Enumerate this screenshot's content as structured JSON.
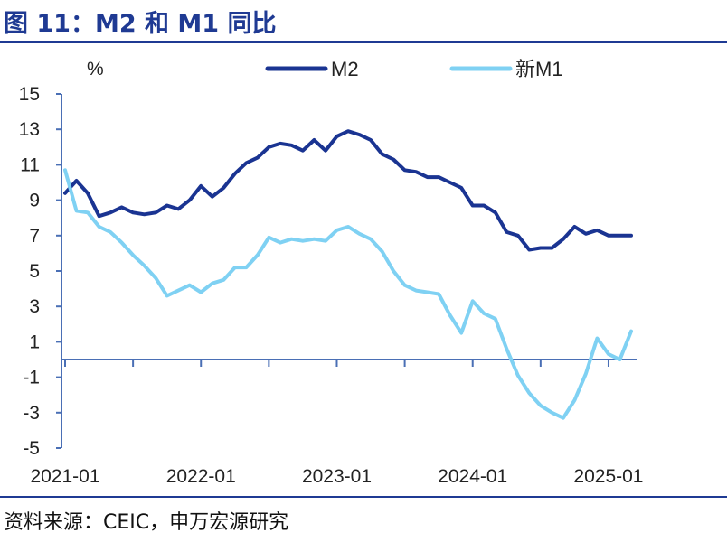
{
  "header": {
    "title": "图 11：M2 和 M1 同比"
  },
  "footer": {
    "source": "资料来源：CEIC，申万宏源研究"
  },
  "colors": {
    "title": "#1f3a93",
    "m2": "#1a3492",
    "m1": "#7fd1f3",
    "axis": "#4a6fb5"
  },
  "chart_data": {
    "type": "line",
    "ylabel": "%",
    "ylim": [
      -5,
      15
    ],
    "yticks": [
      15,
      13,
      11,
      9,
      7,
      5,
      3,
      1,
      -1,
      -3,
      -5
    ],
    "xtick_labels": [
      "2021-01",
      "2022-01",
      "2023-01",
      "2024-01",
      "2025-01"
    ],
    "x_start": "2021-01",
    "x_end": "2025-05",
    "legend_position": "top",
    "grid": false,
    "series": [
      {
        "name": "M2",
        "values": [
          9.4,
          10.1,
          9.4,
          8.1,
          8.3,
          8.6,
          8.3,
          8.2,
          8.3,
          8.7,
          8.5,
          9.0,
          9.8,
          9.2,
          9.7,
          10.5,
          11.1,
          11.4,
          12.0,
          12.2,
          12.1,
          11.8,
          12.4,
          11.8,
          12.6,
          12.9,
          12.7,
          12.4,
          11.6,
          11.3,
          10.7,
          10.6,
          10.3,
          10.3,
          10.0,
          9.7,
          8.7,
          8.7,
          8.3,
          7.2,
          7.0,
          6.2,
          6.3,
          6.3,
          6.8,
          7.5,
          7.1,
          7.3,
          7.0,
          7.0,
          7.0
        ]
      },
      {
        "name": "新M1",
        "values": [
          10.7,
          8.4,
          8.3,
          7.5,
          7.2,
          6.6,
          5.9,
          5.3,
          4.6,
          3.6,
          3.9,
          4.2,
          3.8,
          4.3,
          4.5,
          5.2,
          5.2,
          5.9,
          6.9,
          6.6,
          6.8,
          6.7,
          6.8,
          6.7,
          7.3,
          7.5,
          7.1,
          6.8,
          6.1,
          5.0,
          4.2,
          3.9,
          3.8,
          3.7,
          2.5,
          1.5,
          3.3,
          2.6,
          2.3,
          0.6,
          -0.9,
          -1.9,
          -2.6,
          -3.0,
          -3.3,
          -2.3,
          -0.8,
          1.2,
          0.3,
          0.0,
          1.6
        ]
      }
    ]
  }
}
